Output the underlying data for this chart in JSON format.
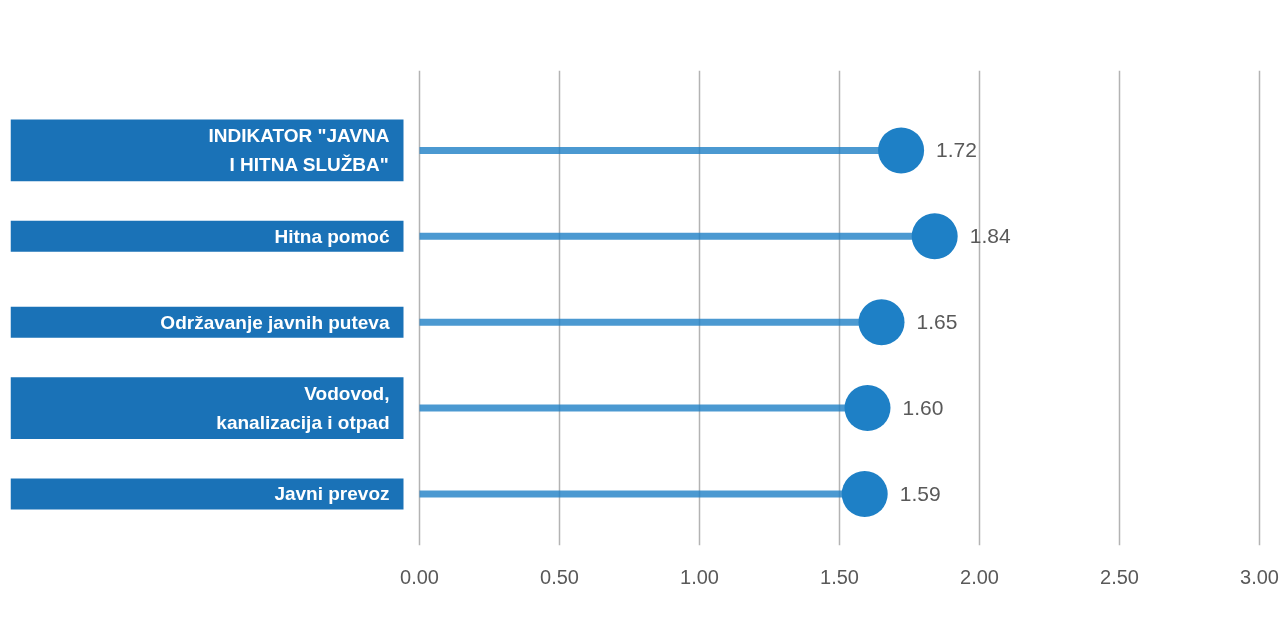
{
  "chart_data": {
    "type": "lollipop",
    "orientation": "horizontal",
    "categories": [
      "INDIKATOR \"JAVNA I HITNA SLUŽBA\"",
      "Hitna pomoć",
      "Održavanje javnih puteva",
      "Vodovod, kanalizacija i otpad",
      "Javni prevoz"
    ],
    "series": [
      {
        "color": "#1e80c6",
        "values": [
          1.72,
          1.84,
          1.65,
          1.6,
          1.59
        ],
        "value_labels": [
          "1.72",
          "1.84",
          "1.65",
          "1.60",
          "1.59"
        ]
      }
    ],
    "xlim": [
      0,
      3
    ],
    "xticks": [
      {
        "value": 0,
        "label": "0.00"
      },
      {
        "value": 0.5,
        "label": "0.50"
      },
      {
        "value": 1,
        "label": "1.00"
      },
      {
        "value": 1.5,
        "label": "1.50"
      },
      {
        "value": 2,
        "label": "2.00"
      },
      {
        "value": 2.5,
        "label": "2.50"
      },
      {
        "value": 3,
        "label": "3.00"
      }
    ],
    "grid": "x",
    "marker": "circle"
  }
}
